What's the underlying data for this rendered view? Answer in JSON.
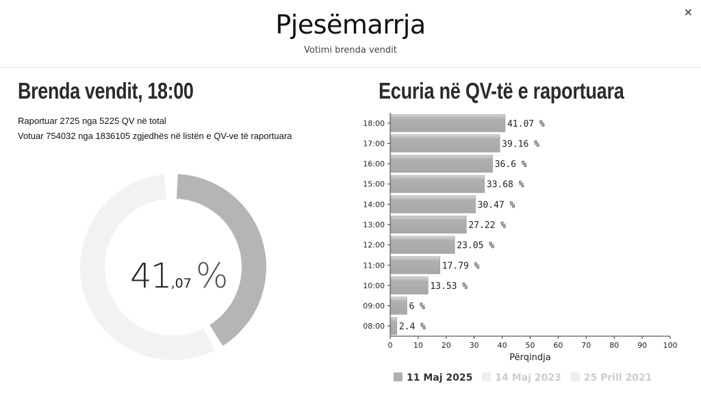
{
  "header": {
    "title": "Pjesëmarrja",
    "subtitle": "Votimi brenda vendit",
    "close_symbol": "×"
  },
  "left": {
    "title": "Brenda vendit, 18:00",
    "reported": "Raportuar 2725 nga 5225 QV në total",
    "voted": "Votuar 754032 nga 1836105 zgjedhës në listën e QV-ve të raportuara",
    "turnout": {
      "integer": "41",
      "decimal": ",07",
      "symbol": "%",
      "value": 41.07
    },
    "donut_colors": {
      "filled": "#b5b5b5",
      "empty": "#f2f2f2"
    }
  },
  "right": {
    "title": "Ecuria në QV-të e raportuara"
  },
  "chart_data": {
    "type": "bar",
    "orientation": "horizontal",
    "categories": [
      "18:00",
      "17:00",
      "16:00",
      "15:00",
      "14:00",
      "13:00",
      "12:00",
      "11:00",
      "10:00",
      "09:00",
      "08:00"
    ],
    "values": [
      41.07,
      39.16,
      36.6,
      33.68,
      30.47,
      27.22,
      23.05,
      17.79,
      13.53,
      6,
      2.4
    ],
    "data_labels": [
      "41.07 %",
      "39.16 %",
      "36.6 %",
      "33.68 %",
      "30.47 %",
      "27.22 %",
      "23.05 %",
      "17.79 %",
      "13.53 %",
      "6 %",
      "2.4 %"
    ],
    "xlabel": "Përqindja",
    "xlim": [
      0,
      100
    ],
    "xticks": [
      0,
      10,
      20,
      30,
      40,
      50,
      60,
      70,
      80,
      90,
      100
    ],
    "legend_position": "bottom",
    "series": [
      {
        "name": "11 Maj 2025",
        "color": "#b0b0b0",
        "text_color": "#333333",
        "visible": true
      },
      {
        "name": "14 Maj 2023",
        "color": "#eeeeee",
        "text_color": "#cccccc",
        "visible": false
      },
      {
        "name": "25 Prill 2021",
        "color": "#eeeeee",
        "text_color": "#cccccc",
        "visible": false
      }
    ]
  }
}
